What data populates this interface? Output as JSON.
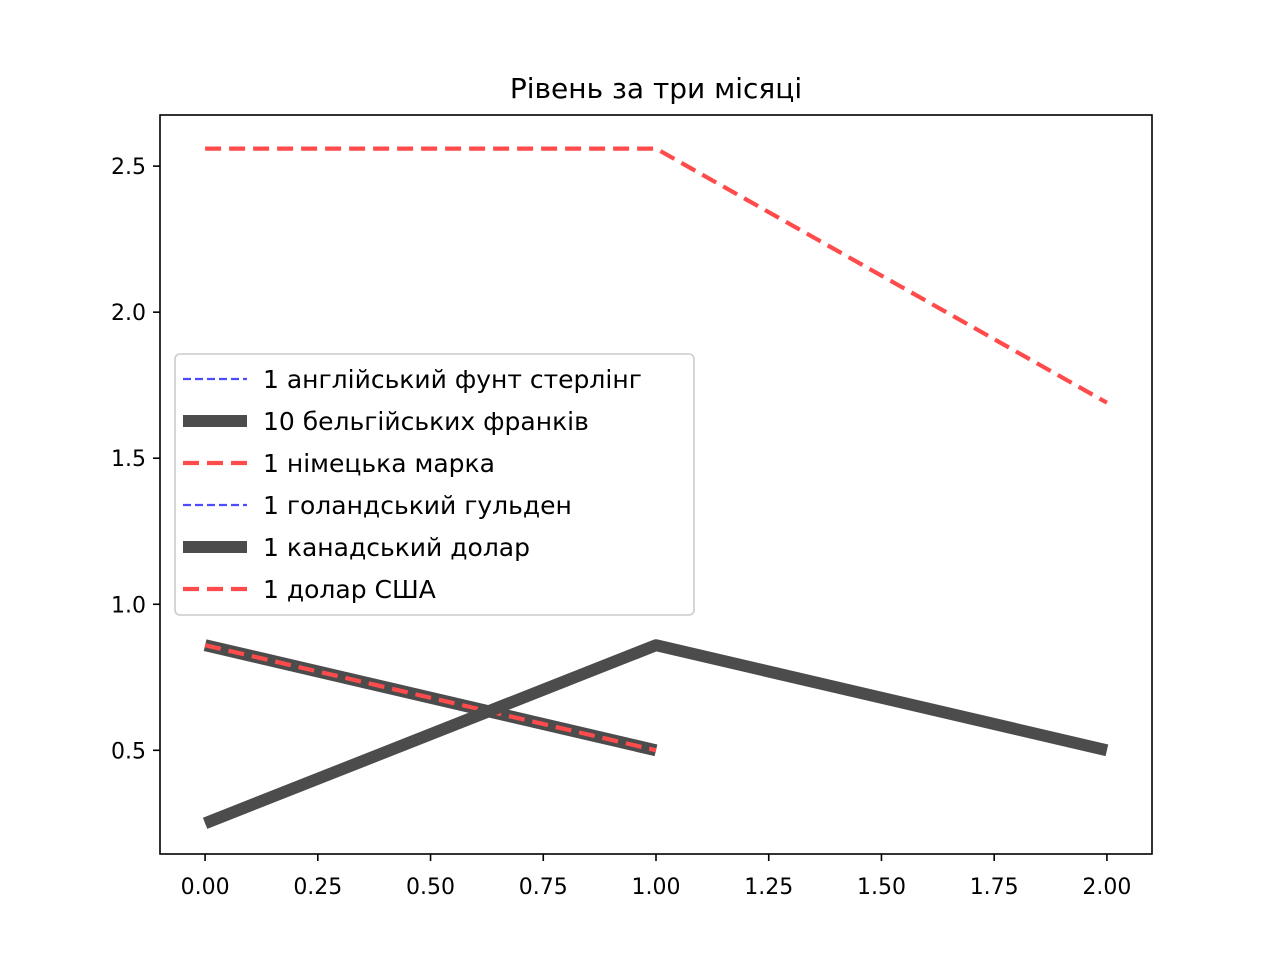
{
  "chart_data": {
    "type": "line",
    "title": "Рівень за три місяці",
    "xlabel": "",
    "ylabel": "",
    "xlim": [
      -0.1,
      2.1
    ],
    "ylim": [
      0.145,
      2.675
    ],
    "xticks": [
      "0.00",
      "0.25",
      "0.50",
      "0.75",
      "1.00",
      "1.25",
      "1.50",
      "1.75",
      "2.00"
    ],
    "yticks": [
      "0.5",
      "1.0",
      "1.5",
      "2.0",
      "2.5"
    ],
    "grid": false,
    "legend_position": "center-left",
    "series": [
      {
        "name": "1 англійський фунт стерлінг",
        "x": [
          0,
          1
        ],
        "y": [
          0.86,
          0.5
        ],
        "color": "#4b4bff",
        "style": "dashed-thin"
      },
      {
        "name": "10 бельгійських франків",
        "x": [
          0,
          1
        ],
        "y": [
          0.86,
          0.5
        ],
        "color": "#4c4c4c",
        "style": "solid-thick"
      },
      {
        "name": "1 німецька марка",
        "x": [
          0,
          1
        ],
        "y": [
          0.86,
          0.5
        ],
        "color": "#ff4b4b",
        "style": "dashed-medium"
      },
      {
        "name": "1 голандський гульден",
        "x": [
          0,
          1,
          2
        ],
        "y": [
          0.25,
          0.86,
          0.5
        ],
        "color": "#4b4bff",
        "style": "dashed-thin"
      },
      {
        "name": "1 канадський долар",
        "x": [
          0,
          1,
          2
        ],
        "y": [
          0.25,
          0.86,
          0.5
        ],
        "color": "#4c4c4c",
        "style": "solid-thick"
      },
      {
        "name": "1 долар США",
        "x": [
          0,
          1,
          2
        ],
        "y": [
          2.56,
          2.56,
          1.69
        ],
        "color": "#ff4b4b",
        "style": "dashed-medium"
      }
    ]
  }
}
